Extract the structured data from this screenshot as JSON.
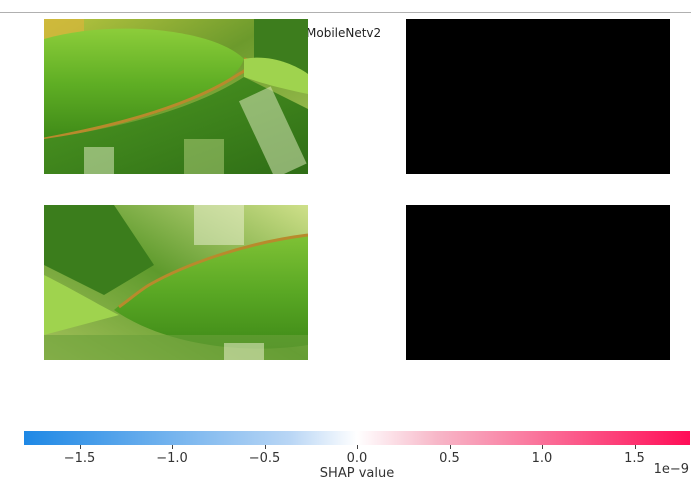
{
  "chart_data": {
    "type": "heatmap",
    "title": "MobileNetv2",
    "rows": [
      {
        "image": "leaf-photo",
        "shap_map": "uniform-zero"
      },
      {
        "image": "leaf-photo-flipped",
        "shap_map": "uniform-zero"
      }
    ],
    "colorbar": {
      "label": "SHAP value",
      "exponent": "1e−9",
      "range": [
        -1.8,
        1.8
      ],
      "ticks": [
        -1.5,
        -1.0,
        -0.5,
        0.0,
        0.5,
        1.0,
        1.5
      ],
      "tick_labels": [
        "−1.5",
        "−1.0",
        "−0.5",
        "0.0",
        "0.5",
        "1.0",
        "1.5"
      ],
      "colors": {
        "negative": "#1e88e5",
        "zero": "#ffffff",
        "positive": "#ff0d57"
      }
    }
  }
}
